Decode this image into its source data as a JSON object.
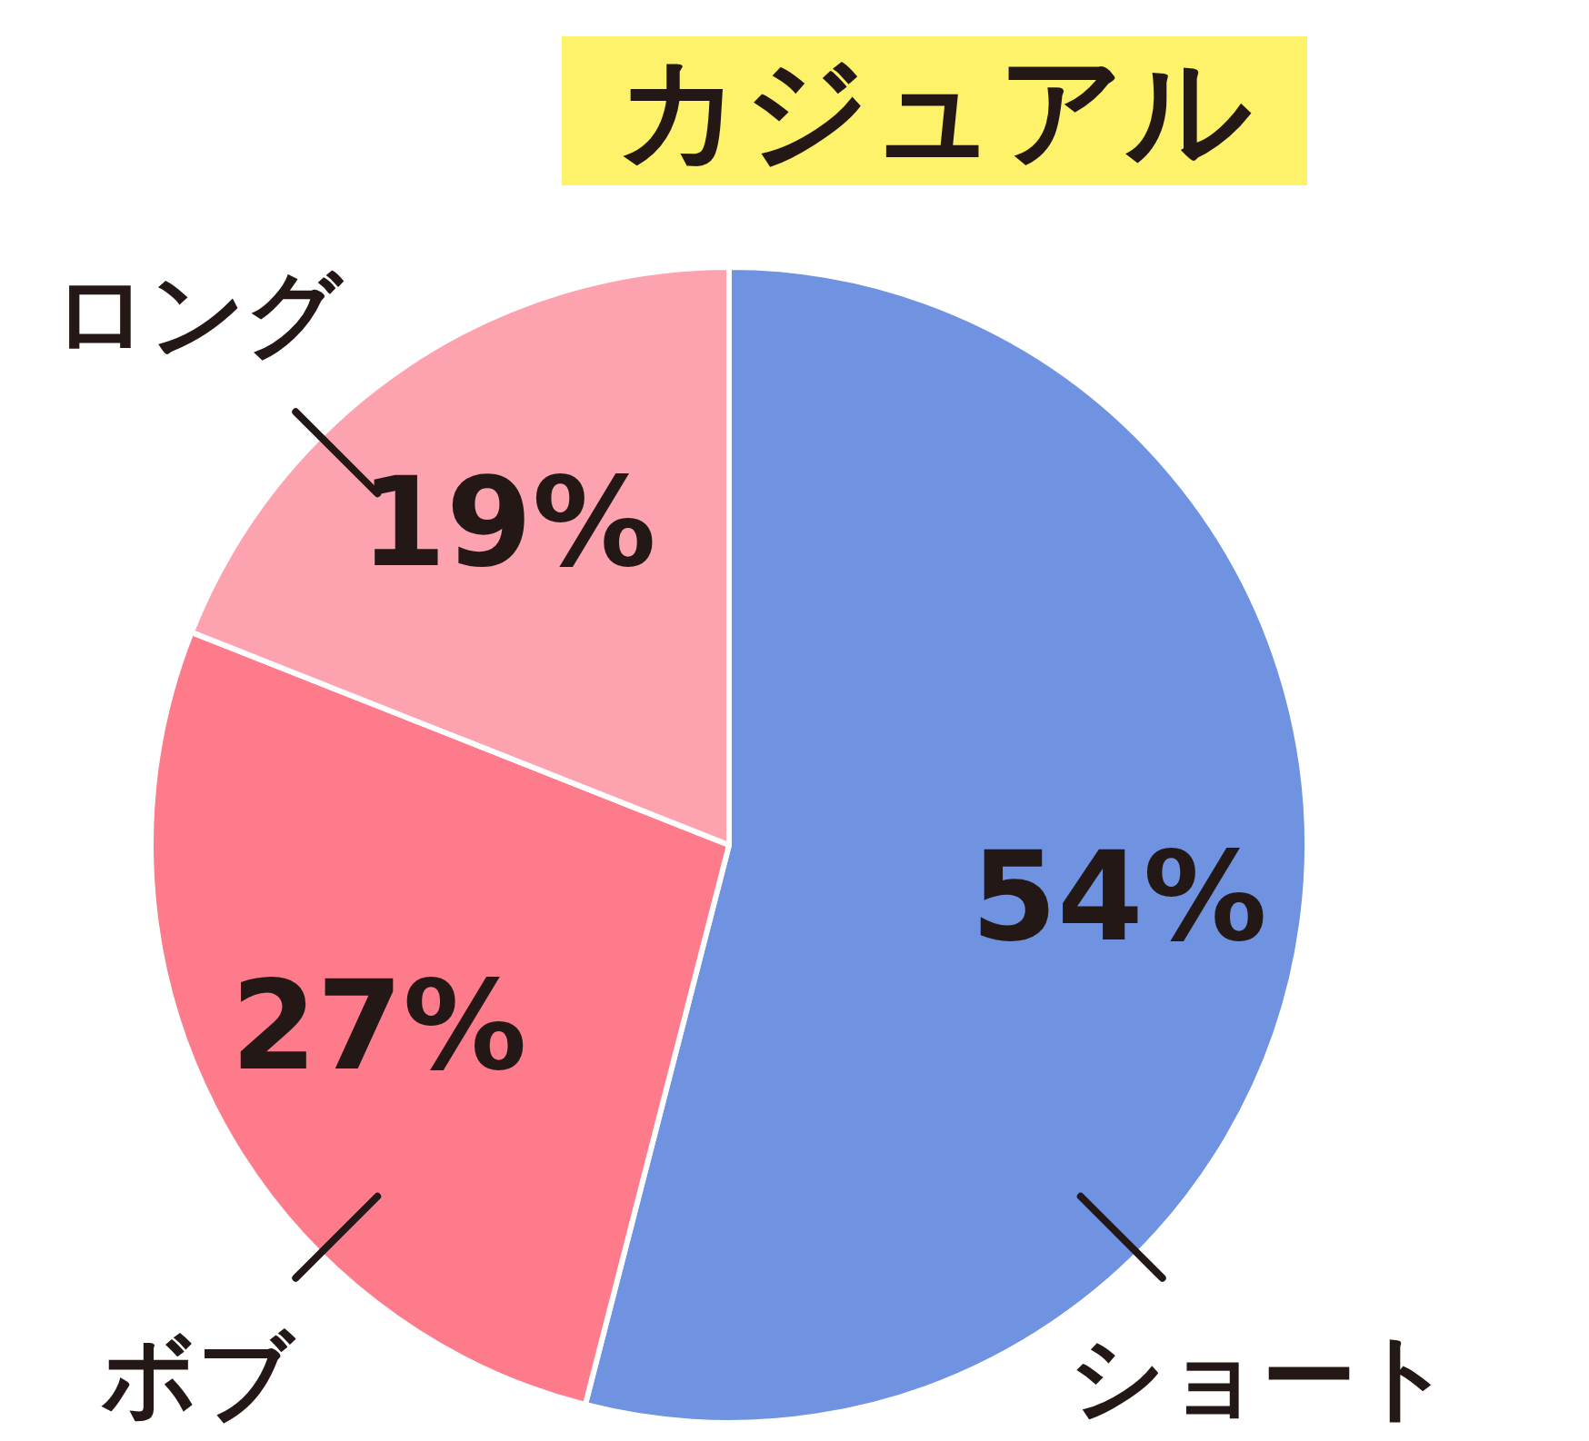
{
  "chart_data": {
    "type": "pie",
    "title": "カジュアル",
    "categories": [
      "ショート",
      "ボブ",
      "ロング"
    ],
    "values": [
      54,
      27,
      19
    ],
    "colors": [
      "#6f93e0",
      "#fd7b8a",
      "#fda3b0"
    ],
    "value_labels": [
      "54%",
      "27%",
      "19%"
    ]
  }
}
